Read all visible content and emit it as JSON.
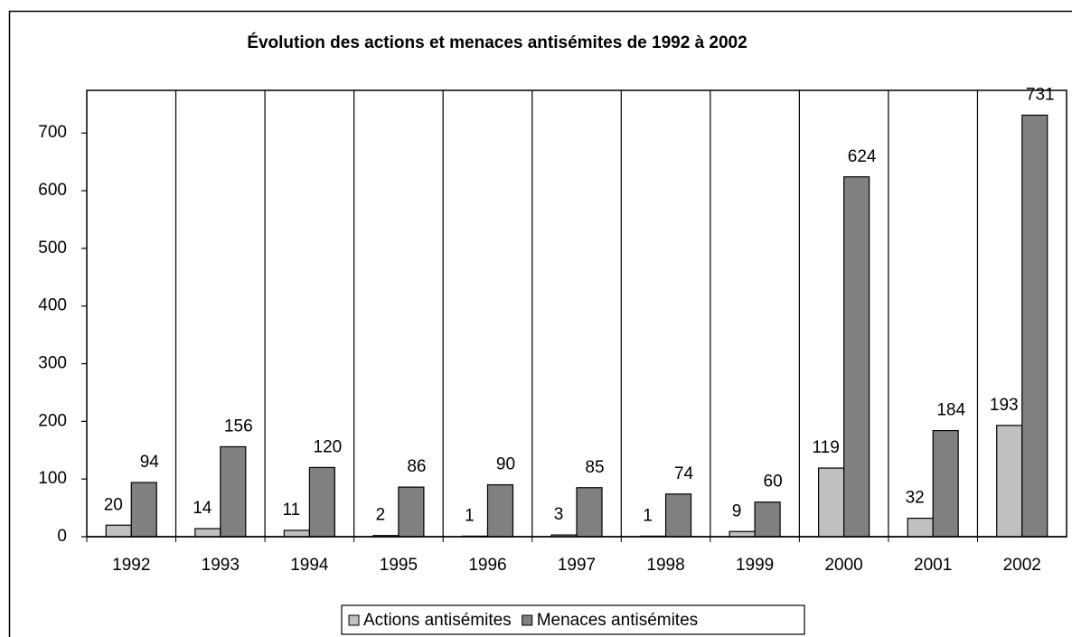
{
  "chart_data": {
    "type": "bar",
    "title": "Évolution des actions et menaces antisémites de 1992 à 2002",
    "categories": [
      "1992",
      "1993",
      "1994",
      "1995",
      "1996",
      "1997",
      "1998",
      "1999",
      "2000",
      "2001",
      "2002"
    ],
    "series": [
      {
        "name": "Actions antisémites",
        "color": "#c0c0c0",
        "values": [
          20,
          14,
          11,
          2,
          1,
          3,
          1,
          9,
          119,
          32,
          193
        ]
      },
      {
        "name": "Menaces antisémites",
        "color": "#808080",
        "values": [
          94,
          156,
          120,
          86,
          90,
          85,
          74,
          60,
          624,
          184,
          731
        ]
      }
    ],
    "ylim": [
      0,
      774
    ],
    "yticks": [
      0,
      100,
      200,
      300,
      400,
      500,
      600,
      700
    ],
    "legend": "bottom"
  }
}
